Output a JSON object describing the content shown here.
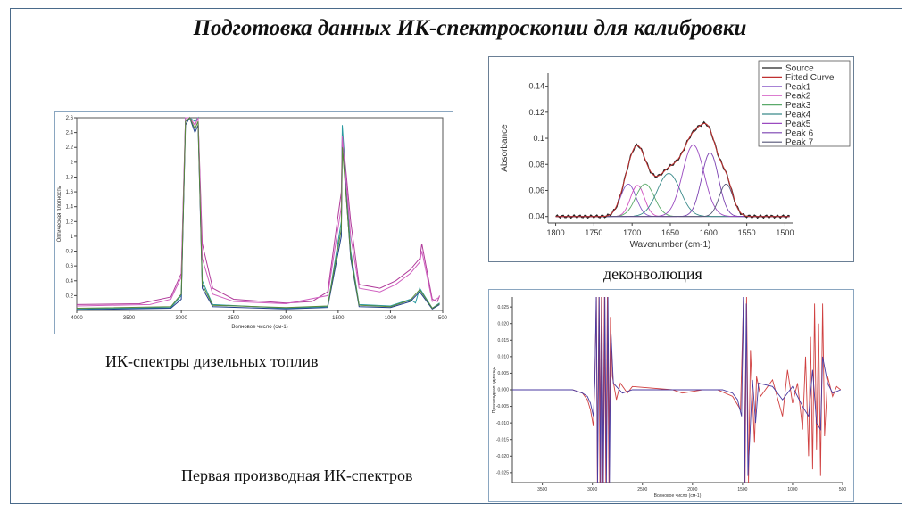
{
  "slide": {
    "title": "Подготовка данных ИК-спектроскопии для калибровки",
    "caption_ir": "ИК-спектры дизельных топлив",
    "caption_deconv": "деконволюция",
    "caption_derivative": "Первая производная ИК-спектров"
  },
  "chart_data": [
    {
      "type": "line",
      "id": "ir-spectra",
      "xlabel": "Волновое число (см-1)",
      "ylabel": "Оптическая плотность",
      "xlim": [
        4000,
        500
      ],
      "ylim": [
        0.0,
        2.6
      ],
      "x_ticks": [
        4000,
        3500,
        3000,
        2500,
        2000,
        1500,
        1000,
        500
      ],
      "y_ticks": [
        0.2,
        0.4,
        0.6,
        0.8,
        1.0,
        1.2,
        1.4,
        1.6,
        1.8,
        2.0,
        2.2,
        2.4,
        2.6
      ],
      "colors": [
        "#b03a9a",
        "#2a9aa0",
        "#1f3f8a",
        "#d060c0",
        "#5a8a3a"
      ],
      "series": [
        {
          "values": [
            [
              4000,
              0.08
            ],
            [
              3400,
              0.09
            ],
            [
              3100,
              0.18
            ],
            [
              3000,
              0.5
            ],
            [
              2960,
              2.6
            ],
            [
              2920,
              2.6
            ],
            [
              2870,
              2.5
            ],
            [
              2840,
              2.6
            ],
            [
              2800,
              0.9
            ],
            [
              2700,
              0.3
            ],
            [
              2500,
              0.15
            ],
            [
              2000,
              0.1
            ],
            [
              1750,
              0.12
            ],
            [
              1600,
              0.25
            ],
            [
              1470,
              1.6
            ],
            [
              1460,
              2.4
            ],
            [
              1380,
              1.2
            ],
            [
              1300,
              0.35
            ],
            [
              1100,
              0.3
            ],
            [
              950,
              0.4
            ],
            [
              810,
              0.55
            ],
            [
              720,
              0.7
            ],
            [
              700,
              0.9
            ],
            [
              600,
              0.15
            ],
            [
              550,
              0.12
            ],
            [
              530,
              0.2
            ]
          ]
        },
        {
          "values": [
            [
              4000,
              0.02
            ],
            [
              3100,
              0.04
            ],
            [
              3000,
              0.2
            ],
            [
              2960,
              2.6
            ],
            [
              2920,
              2.6
            ],
            [
              2870,
              2.55
            ],
            [
              2840,
              2.6
            ],
            [
              2800,
              0.4
            ],
            [
              2700,
              0.08
            ],
            [
              2000,
              0.03
            ],
            [
              1600,
              0.05
            ],
            [
              1470,
              1.2
            ],
            [
              1460,
              2.5
            ],
            [
              1380,
              0.8
            ],
            [
              1300,
              0.08
            ],
            [
              1000,
              0.06
            ],
            [
              810,
              0.15
            ],
            [
              760,
              0.1
            ],
            [
              720,
              0.3
            ],
            [
              600,
              0.03
            ],
            [
              530,
              0.1
            ]
          ]
        },
        {
          "values": [
            [
              4000,
              0.01
            ],
            [
              3100,
              0.03
            ],
            [
              3000,
              0.15
            ],
            [
              2960,
              2.5
            ],
            [
              2920,
              2.6
            ],
            [
              2870,
              2.4
            ],
            [
              2840,
              2.5
            ],
            [
              2800,
              0.3
            ],
            [
              2700,
              0.05
            ],
            [
              2000,
              0.02
            ],
            [
              1600,
              0.04
            ],
            [
              1470,
              1.0
            ],
            [
              1460,
              2.3
            ],
            [
              1380,
              0.7
            ],
            [
              1300,
              0.05
            ],
            [
              1000,
              0.04
            ],
            [
              810,
              0.12
            ],
            [
              720,
              0.25
            ],
            [
              600,
              0.02
            ],
            [
              530,
              0.08
            ]
          ]
        },
        {
          "values": [
            [
              4000,
              0.06
            ],
            [
              3300,
              0.08
            ],
            [
              3100,
              0.15
            ],
            [
              3000,
              0.45
            ],
            [
              2960,
              2.6
            ],
            [
              2920,
              2.6
            ],
            [
              2870,
              2.5
            ],
            [
              2840,
              2.6
            ],
            [
              2800,
              0.7
            ],
            [
              2700,
              0.22
            ],
            [
              2500,
              0.12
            ],
            [
              2000,
              0.09
            ],
            [
              1600,
              0.2
            ],
            [
              1470,
              1.4
            ],
            [
              1460,
              2.35
            ],
            [
              1380,
              1.0
            ],
            [
              1300,
              0.3
            ],
            [
              1100,
              0.25
            ],
            [
              950,
              0.35
            ],
            [
              810,
              0.5
            ],
            [
              720,
              0.65
            ],
            [
              700,
              0.8
            ],
            [
              600,
              0.12
            ],
            [
              530,
              0.18
            ]
          ]
        },
        {
          "values": [
            [
              4000,
              0.03
            ],
            [
              3100,
              0.05
            ],
            [
              3000,
              0.22
            ],
            [
              2960,
              2.55
            ],
            [
              2920,
              2.6
            ],
            [
              2870,
              2.45
            ],
            [
              2840,
              2.55
            ],
            [
              2800,
              0.35
            ],
            [
              2700,
              0.07
            ],
            [
              2000,
              0.04
            ],
            [
              1600,
              0.06
            ],
            [
              1470,
              1.1
            ],
            [
              1460,
              2.2
            ],
            [
              1380,
              0.75
            ],
            [
              1300,
              0.07
            ],
            [
              1000,
              0.05
            ],
            [
              810,
              0.14
            ],
            [
              720,
              0.28
            ],
            [
              600,
              0.03
            ],
            [
              530,
              0.09
            ]
          ]
        }
      ]
    },
    {
      "type": "line",
      "id": "deconvolution",
      "xlabel": "Wavenumber (cm-1)",
      "ylabel": "Absorbance",
      "xlim": [
        1810,
        1490
      ],
      "ylim": [
        0.035,
        0.15
      ],
      "x_ticks": [
        1800,
        1750,
        1700,
        1650,
        1600,
        1550,
        1500
      ],
      "y_ticks": [
        0.04,
        0.06,
        0.08,
        0.1,
        0.12,
        0.14
      ],
      "legend_position": "top-right",
      "legend": [
        "Source",
        "Fitted Curve",
        "Peak1",
        "Peak2",
        "Peak3",
        "Peak4",
        "Peak5",
        "Peak 6",
        "Peak 7"
      ],
      "colors": [
        "#222222",
        "#c03030",
        "#8a5ac8",
        "#d050c0",
        "#5aaa6a",
        "#3a8a8a",
        "#9a4ac0",
        "#7a40b0",
        "#555577"
      ],
      "baseline": 0.04,
      "peaks": [
        {
          "name": "Peak1",
          "center": 1705,
          "height": 0.025,
          "width": 10
        },
        {
          "name": "Peak2",
          "center": 1693,
          "height": 0.024,
          "width": 9
        },
        {
          "name": "Peak3",
          "center": 1683,
          "height": 0.025,
          "width": 12
        },
        {
          "name": "Peak4",
          "center": 1652,
          "height": 0.033,
          "width": 15
        },
        {
          "name": "Peak5",
          "center": 1620,
          "height": 0.055,
          "width": 14
        },
        {
          "name": "Peak 6",
          "center": 1598,
          "height": 0.049,
          "width": 11
        },
        {
          "name": "Peak 7",
          "center": 1577,
          "height": 0.025,
          "width": 9
        }
      ]
    },
    {
      "type": "line",
      "id": "first-derivative",
      "xlabel": "Волновое число (см-1)",
      "ylabel": "Производная единицы",
      "xlim": [
        3800,
        500
      ],
      "ylim": [
        -0.028,
        0.028
      ],
      "x_ticks": [
        3500,
        3000,
        2500,
        2000,
        1500,
        1000,
        500
      ],
      "y_ticks": [
        0.025,
        0.02,
        0.015,
        0.01,
        0.005,
        0.0,
        -0.005,
        -0.01,
        -0.015,
        -0.02,
        -0.025
      ],
      "colors": [
        "#d04040",
        "#4a3aa0"
      ],
      "series": [
        {
          "values": [
            [
              3800,
              0.0
            ],
            [
              3200,
              0.0
            ],
            [
              3100,
              -0.001
            ],
            [
              3050,
              -0.003
            ],
            [
              3020,
              -0.006
            ],
            [
              2990,
              -0.011
            ],
            [
              2975,
              0.004
            ],
            [
              2960,
              0.028
            ],
            [
              2950,
              -0.028
            ],
            [
              2935,
              0.028
            ],
            [
              2925,
              -0.028
            ],
            [
              2910,
              0.028
            ],
            [
              2895,
              -0.028
            ],
            [
              2880,
              0.028
            ],
            [
              2865,
              -0.028
            ],
            [
              2850,
              0.028
            ],
            [
              2835,
              -0.028
            ],
            [
              2820,
              0.022
            ],
            [
              2800,
              0.004
            ],
            [
              2760,
              -0.003
            ],
            [
              2720,
              0.002
            ],
            [
              2650,
              -0.001
            ],
            [
              2600,
              0.001
            ],
            [
              2200,
              0.0
            ],
            [
              2100,
              -0.001
            ],
            [
              1900,
              0.0
            ],
            [
              1750,
              0.0
            ],
            [
              1600,
              -0.002
            ],
            [
              1560,
              -0.004
            ],
            [
              1520,
              -0.006
            ],
            [
              1490,
              0.028
            ],
            [
              1475,
              -0.028
            ],
            [
              1460,
              0.028
            ],
            [
              1440,
              -0.028
            ],
            [
              1420,
              0.012
            ],
            [
              1380,
              -0.016
            ],
            [
              1360,
              0.004
            ],
            [
              1320,
              -0.002
            ],
            [
              1200,
              0.003
            ],
            [
              1100,
              -0.008
            ],
            [
              1050,
              0.006
            ],
            [
              1000,
              -0.004
            ],
            [
              950,
              0.002
            ],
            [
              900,
              -0.012
            ],
            [
              870,
              0.01
            ],
            [
              840,
              -0.02
            ],
            [
              820,
              0.016
            ],
            [
              800,
              -0.024
            ],
            [
              780,
              0.026
            ],
            [
              760,
              -0.018
            ],
            [
              740,
              0.02
            ],
            [
              720,
              -0.026
            ],
            [
              700,
              0.026
            ],
            [
              680,
              -0.014
            ],
            [
              650,
              0.004
            ],
            [
              600,
              -0.002
            ],
            [
              560,
              0.001
            ],
            [
              520,
              0.0
            ]
          ]
        },
        {
          "values": [
            [
              3800,
              0.0
            ],
            [
              3200,
              0.0
            ],
            [
              3100,
              -0.001
            ],
            [
              3050,
              -0.002
            ],
            [
              3020,
              -0.004
            ],
            [
              2990,
              -0.008
            ],
            [
              2975,
              0.003
            ],
            [
              2962,
              0.028
            ],
            [
              2948,
              -0.028
            ],
            [
              2932,
              0.028
            ],
            [
              2918,
              -0.028
            ],
            [
              2905,
              0.028
            ],
            [
              2890,
              -0.028
            ],
            [
              2875,
              0.028
            ],
            [
              2860,
              -0.028
            ],
            [
              2845,
              0.028
            ],
            [
              2830,
              -0.028
            ],
            [
              2815,
              0.018
            ],
            [
              2790,
              0.002
            ],
            [
              2700,
              -0.001
            ],
            [
              2600,
              0.0
            ],
            [
              2000,
              0.0
            ],
            [
              1700,
              0.0
            ],
            [
              1600,
              -0.001
            ],
            [
              1550,
              -0.003
            ],
            [
              1510,
              -0.008
            ],
            [
              1492,
              0.028
            ],
            [
              1478,
              -0.028
            ],
            [
              1462,
              0.026
            ],
            [
              1445,
              -0.026
            ],
            [
              1400,
              0.003
            ],
            [
              1370,
              -0.01
            ],
            [
              1340,
              0.002
            ],
            [
              1200,
              0.001
            ],
            [
              1100,
              -0.003
            ],
            [
              1000,
              0.001
            ],
            [
              900,
              -0.005
            ],
            [
              840,
              -0.008
            ],
            [
              800,
              0.006
            ],
            [
              760,
              -0.01
            ],
            [
              720,
              -0.012
            ],
            [
              700,
              0.01
            ],
            [
              650,
              0.002
            ],
            [
              600,
              -0.001
            ],
            [
              520,
              0.0
            ]
          ]
        }
      ]
    }
  ]
}
